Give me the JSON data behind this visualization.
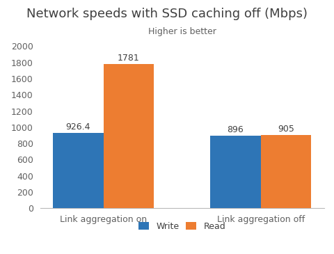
{
  "title": "Network speeds with SSD caching off (Mbps)",
  "subtitle": "Higher is better",
  "categories": [
    "Link aggregation on",
    "Link aggregation off"
  ],
  "series": [
    {
      "label": "Write",
      "values": [
        926.4,
        896
      ],
      "color": "#2E75B6"
    },
    {
      "label": "Read",
      "values": [
        1781,
        905
      ],
      "color": "#ED7D31"
    }
  ],
  "ylim": [
    0,
    2100
  ],
  "yticks": [
    0,
    200,
    400,
    600,
    800,
    1000,
    1200,
    1400,
    1600,
    1800,
    2000
  ],
  "title_fontsize": 13,
  "subtitle_fontsize": 9,
  "tick_label_fontsize": 9,
  "bar_label_fontsize": 9,
  "legend_fontsize": 9,
  "title_color": "#404040",
  "subtitle_color": "#606060",
  "tick_color": "#606060",
  "bar_label_color": "#404040",
  "background_color": "#FFFFFF",
  "bar_width": 0.32
}
